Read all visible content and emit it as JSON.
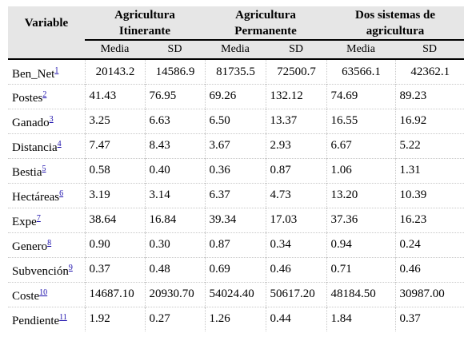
{
  "headers": {
    "variable": "Variable",
    "groups": [
      "Agricultura Itinerante",
      "Agricultura Permanente",
      "Dos sistemas de agricultura"
    ],
    "subs": [
      "Media",
      "SD",
      "Media",
      "SD",
      "Media",
      "SD"
    ]
  },
  "rows": [
    {
      "label": "Ben_Net",
      "note": "1",
      "values": [
        "20143.2",
        "14586.9",
        "81735.5",
        "72500.7",
        "63566.1",
        "42362.1"
      ]
    },
    {
      "label": "Postes",
      "note": "2",
      "values": [
        "41.43",
        "76.95",
        "69.26",
        "132.12",
        "74.69",
        "89.23"
      ]
    },
    {
      "label": "Ganado",
      "note": "3",
      "values": [
        "3.25",
        "6.63",
        "6.50",
        "13.37",
        "16.55",
        "16.92"
      ]
    },
    {
      "label": "Distancia",
      "note": "4",
      "values": [
        "7.47",
        "8.43",
        "3.67",
        "2.93",
        "6.67",
        "5.22"
      ]
    },
    {
      "label": "Bestia",
      "note": "5",
      "values": [
        "0.58",
        "0.40",
        "0.36",
        "0.87",
        "1.06",
        "1.31"
      ]
    },
    {
      "label": "Hectáreas",
      "note": "6",
      "values": [
        "3.19",
        "3.14",
        "6.37",
        "4.73",
        "13.20",
        "10.39"
      ]
    },
    {
      "label": "Expe",
      "note": "7",
      "values": [
        "38.64",
        "16.84",
        "39.34",
        "17.03",
        "37.36",
        "16.23"
      ]
    },
    {
      "label": "Genero",
      "note": "8",
      "values": [
        "0.90",
        "0.30",
        "0.87",
        "0.34",
        "0.94",
        "0.24"
      ]
    },
    {
      "label": "Subvención",
      "note": "9",
      "values": [
        "0.37",
        "0.48",
        "0.69",
        "0.46",
        "0.71",
        "0.46"
      ]
    },
    {
      "label": "Coste",
      "note": "10",
      "values": [
        "14687.10",
        "20930.70",
        "54024.40",
        "50617.20",
        "48184.50",
        "30987.00"
      ]
    },
    {
      "label": "Pendiente",
      "note": "11",
      "values": [
        "1.92",
        "0.27",
        "1.26",
        "0.44",
        "1.84",
        "0.37"
      ]
    }
  ]
}
